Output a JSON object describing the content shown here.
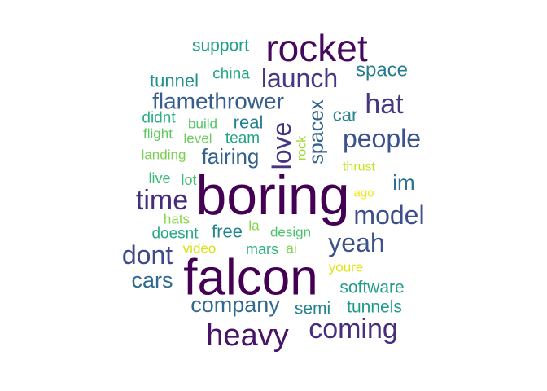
{
  "chart_data": {
    "type": "wordcloud",
    "title": "",
    "colormap": "viridis",
    "words": [
      {
        "text": "boring",
        "weight": 1.0,
        "color": "#440154"
      },
      {
        "text": "falcon",
        "weight": 1.0,
        "color": "#440154"
      },
      {
        "text": "rocket",
        "weight": 0.78,
        "color": "#46085c"
      },
      {
        "text": "heavy",
        "weight": 0.66,
        "color": "#471365"
      },
      {
        "text": "coming",
        "weight": 0.62,
        "color": "#472d7b"
      },
      {
        "text": "time",
        "weight": 0.62,
        "color": "#472c7a"
      },
      {
        "text": "launch",
        "weight": 0.58,
        "color": "#443a83"
      },
      {
        "text": "love",
        "weight": 0.6,
        "color": "#463480"
      },
      {
        "text": "hat",
        "weight": 0.6,
        "color": "#453781"
      },
      {
        "text": "dont",
        "weight": 0.56,
        "color": "#3f4889"
      },
      {
        "text": "model",
        "weight": 0.54,
        "color": "#3c4f8a"
      },
      {
        "text": "yeah",
        "weight": 0.54,
        "color": "#3b528b"
      },
      {
        "text": "people",
        "weight": 0.54,
        "color": "#3b528b"
      },
      {
        "text": "flamethrower",
        "weight": 0.5,
        "color": "#365d8d"
      },
      {
        "text": "spacex",
        "weight": 0.44,
        "color": "#33628d"
      },
      {
        "text": "company",
        "weight": 0.46,
        "color": "#31688e"
      },
      {
        "text": "fairing",
        "weight": 0.44,
        "color": "#33638d"
      },
      {
        "text": "cars",
        "weight": 0.44,
        "color": "#306a8e"
      },
      {
        "text": "im",
        "weight": 0.42,
        "color": "#2c728e"
      },
      {
        "text": "space",
        "weight": 0.4,
        "color": "#287c8e"
      },
      {
        "text": "real",
        "weight": 0.38,
        "color": "#26828e"
      },
      {
        "text": "semi",
        "weight": 0.36,
        "color": "#25858e"
      },
      {
        "text": "free",
        "weight": 0.38,
        "color": "#23888e"
      },
      {
        "text": "car",
        "weight": 0.38,
        "color": "#25858e"
      },
      {
        "text": "tunnel",
        "weight": 0.36,
        "color": "#21918c"
      },
      {
        "text": "tunnels",
        "weight": 0.36,
        "color": "#1f9a8a"
      },
      {
        "text": "software",
        "weight": 0.36,
        "color": "#1f9e89"
      },
      {
        "text": "support",
        "weight": 0.36,
        "color": "#1fa088"
      },
      {
        "text": "team",
        "weight": 0.32,
        "color": "#20a386"
      },
      {
        "text": "china",
        "weight": 0.32,
        "color": "#22a785"
      },
      {
        "text": "doesnt",
        "weight": 0.32,
        "color": "#24aa83"
      },
      {
        "text": "mars",
        "weight": 0.32,
        "color": "#2fb47c"
      },
      {
        "text": "didnt",
        "weight": 0.3,
        "color": "#28ae80"
      },
      {
        "text": "live",
        "weight": 0.3,
        "color": "#3bbb75"
      },
      {
        "text": "lot",
        "weight": 0.3,
        "color": "#40bd72"
      },
      {
        "text": "design",
        "weight": 0.3,
        "color": "#4ac16d"
      },
      {
        "text": "build",
        "weight": 0.28,
        "color": "#52c569"
      },
      {
        "text": "flight",
        "weight": 0.28,
        "color": "#5ec962"
      },
      {
        "text": "level",
        "weight": 0.28,
        "color": "#6ccd5a"
      },
      {
        "text": "landing",
        "weight": 0.28,
        "color": "#7ad151"
      },
      {
        "text": "ai",
        "weight": 0.28,
        "color": "#7fd34e"
      },
      {
        "text": "la",
        "weight": 0.28,
        "color": "#86d549"
      },
      {
        "text": "hats",
        "weight": 0.28,
        "color": "#8bd646"
      },
      {
        "text": "rock",
        "weight": 0.26,
        "color": "#a2da37"
      },
      {
        "text": "thrust",
        "weight": 0.28,
        "color": "#c8e020"
      },
      {
        "text": "video",
        "weight": 0.28,
        "color": "#d8e219"
      },
      {
        "text": "youre",
        "weight": 0.28,
        "color": "#e2e418"
      },
      {
        "text": "ago",
        "weight": 0.26,
        "color": "#f1e51d"
      }
    ]
  }
}
